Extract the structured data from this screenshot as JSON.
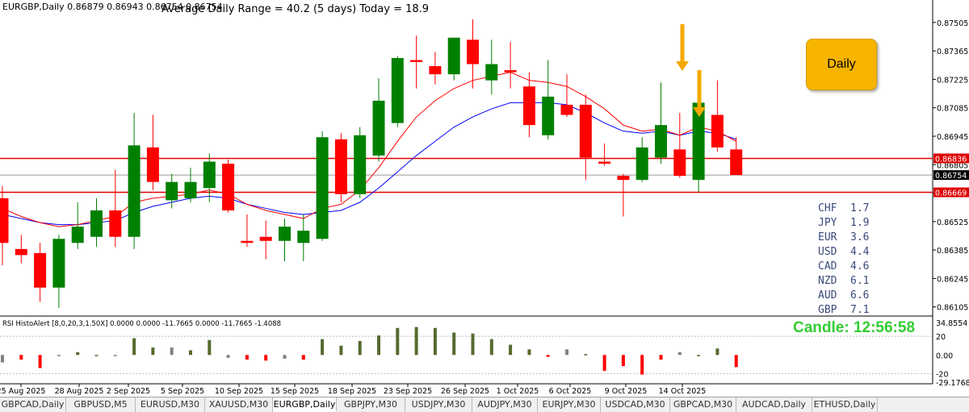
{
  "header": {
    "symbol_info": "EURGBP,Daily  0.86879 0.86943 0.86754 0.86754",
    "adr_label": "Average Daily Range = 40.2 (5 days)    Today = 18.9"
  },
  "daily_button": {
    "label": "Daily"
  },
  "candle_timer": "Candle:  12:56:58",
  "currency_strength": [
    {
      "currency": "CHF",
      "value": "1.7"
    },
    {
      "currency": "JPY",
      "value": "1.9"
    },
    {
      "currency": "EUR",
      "value": "3.6"
    },
    {
      "currency": "USD",
      "value": "4.4"
    },
    {
      "currency": "CAD",
      "value": "4.6"
    },
    {
      "currency": "NZD",
      "value": "6.1"
    },
    {
      "currency": "AUD",
      "value": "6.6"
    },
    {
      "currency": "GBP",
      "value": "7.1"
    }
  ],
  "indicator": {
    "label": "RSI HistoAlert [8,0,20,3,1.50X] 0.0000 0.0000 -11.7665 0.0000 -11.7665 -1.4088",
    "axis_labels": [
      "34.8554",
      "20",
      "0.00",
      "-20",
      "-29.1768"
    ]
  },
  "price_axis": {
    "labels": [
      "0.87505",
      "0.87365",
      "0.87225",
      "0.87085",
      "0.86945",
      "0.86805",
      "0.86665",
      "0.86525",
      "0.86385",
      "0.86245",
      "0.86105"
    ],
    "markers": [
      {
        "value": "0.86836",
        "color": "#e00000"
      },
      {
        "value": "0.86754",
        "color": "#000000"
      },
      {
        "value": "0.86669",
        "color": "#e00000"
      }
    ]
  },
  "date_axis": [
    "25 Aug 2025",
    "28 Aug 2025",
    "2 Sep 2025",
    "5 Sep 2025",
    "10 Sep 2025",
    "15 Sep 2025",
    "18 Sep 2025",
    "23 Sep 2025",
    "26 Sep 2025",
    "1 Oct 2025",
    "6 Oct 2025",
    "9 Oct 2025",
    "14 Oct 2025"
  ],
  "tabs": [
    {
      "label": "GBPCAD,Daily",
      "active": false
    },
    {
      "label": "GBPUSD,M5",
      "active": false
    },
    {
      "label": "EURUSD,M30",
      "active": false
    },
    {
      "label": "XAUUSD,M30",
      "active": false
    },
    {
      "label": "EURGBP,Daily",
      "active": true
    },
    {
      "label": "GBPJPY,M30",
      "active": false
    },
    {
      "label": "USDJPY,M30",
      "active": false
    },
    {
      "label": "AUDJPY,M30",
      "active": false
    },
    {
      "label": "EURJPY,M30",
      "active": false
    },
    {
      "label": "USDCAD,M30",
      "active": false
    },
    {
      "label": "GBPCAD,M30",
      "active": false
    },
    {
      "label": "AUDCAD,Daily",
      "active": false
    },
    {
      "label": "ETHUSD,Daily",
      "active": false
    }
  ],
  "colors": {
    "bull": "#008000",
    "bear": "#ff0000",
    "ma_fast": "#ff0000",
    "ma_slow": "#0000ff",
    "level_line": "#e00000",
    "arrow": "#f5a800",
    "hist_pos": "#556b2f",
    "hist_neg": "#ff0000",
    "hist_neutral": "#808080"
  },
  "chart_data": {
    "type": "candlestick",
    "price_range": [
      0.8606,
      0.8756
    ],
    "levels": [
      0.86836,
      0.86754,
      0.86669
    ],
    "candles": [
      {
        "o": 0.8664,
        "h": 0.867,
        "c": 0.8642,
        "l": 0.8631
      },
      {
        "o": 0.8639,
        "h": 0.8646,
        "c": 0.8636,
        "l": 0.8632
      },
      {
        "o": 0.8637,
        "h": 0.8642,
        "c": 0.862,
        "l": 0.8613
      },
      {
        "o": 0.862,
        "h": 0.8646,
        "c": 0.8644,
        "l": 0.861
      },
      {
        "o": 0.8642,
        "h": 0.8662,
        "c": 0.865,
        "l": 0.8639
      },
      {
        "o": 0.8645,
        "h": 0.8664,
        "c": 0.8658,
        "l": 0.864
      },
      {
        "o": 0.8658,
        "h": 0.8678,
        "c": 0.8645,
        "l": 0.864
      },
      {
        "o": 0.8645,
        "h": 0.8706,
        "c": 0.869,
        "l": 0.8639
      },
      {
        "o": 0.8689,
        "h": 0.8705,
        "c": 0.8672,
        "l": 0.8668
      },
      {
        "o": 0.8663,
        "h": 0.8676,
        "c": 0.8672,
        "l": 0.8659
      },
      {
        "o": 0.8664,
        "h": 0.8679,
        "c": 0.8672,
        "l": 0.8662
      },
      {
        "o": 0.8669,
        "h": 0.8686,
        "c": 0.8682,
        "l": 0.8662
      },
      {
        "o": 0.8681,
        "h": 0.8683,
        "c": 0.8658,
        "l": 0.8657
      },
      {
        "o": 0.8643,
        "h": 0.8656,
        "c": 0.8642,
        "l": 0.864
      },
      {
        "o": 0.8645,
        "h": 0.8653,
        "c": 0.8643,
        "l": 0.8634
      },
      {
        "o": 0.8643,
        "h": 0.8654,
        "c": 0.865,
        "l": 0.8633
      },
      {
        "o": 0.8642,
        "h": 0.8656,
        "c": 0.8648,
        "l": 0.8633
      },
      {
        "o": 0.8644,
        "h": 0.8697,
        "c": 0.8694,
        "l": 0.8643
      },
      {
        "o": 0.8693,
        "h": 0.8696,
        "c": 0.8666,
        "l": 0.8662
      },
      {
        "o": 0.8666,
        "h": 0.8699,
        "c": 0.8695,
        "l": 0.8664
      },
      {
        "o": 0.8685,
        "h": 0.8723,
        "c": 0.8712,
        "l": 0.8682
      },
      {
        "o": 0.8701,
        "h": 0.8734,
        "c": 0.8733,
        "l": 0.8699
      },
      {
        "o": 0.8732,
        "h": 0.8744,
        "c": 0.8731,
        "l": 0.8718
      },
      {
        "o": 0.8729,
        "h": 0.8736,
        "c": 0.8725,
        "l": 0.872
      },
      {
        "o": 0.8725,
        "h": 0.8742,
        "c": 0.8743,
        "l": 0.8722
      },
      {
        "o": 0.8742,
        "h": 0.8752,
        "c": 0.873,
        "l": 0.8718
      },
      {
        "o": 0.8722,
        "h": 0.8742,
        "c": 0.873,
        "l": 0.8715
      },
      {
        "o": 0.8727,
        "h": 0.8741,
        "c": 0.8726,
        "l": 0.8718
      },
      {
        "o": 0.8719,
        "h": 0.8726,
        "c": 0.87,
        "l": 0.8694
      },
      {
        "o": 0.8695,
        "h": 0.8732,
        "c": 0.8714,
        "l": 0.8693
      },
      {
        "o": 0.871,
        "h": 0.8725,
        "c": 0.8705,
        "l": 0.8704
      },
      {
        "o": 0.871,
        "h": 0.8715,
        "c": 0.8684,
        "l": 0.8673
      },
      {
        "o": 0.8682,
        "h": 0.8691,
        "c": 0.8681,
        "l": 0.868
      },
      {
        "o": 0.8675,
        "h": 0.8676,
        "c": 0.8673,
        "l": 0.8655
      },
      {
        "o": 0.8673,
        "h": 0.8694,
        "c": 0.8689,
        "l": 0.8672
      },
      {
        "o": 0.8684,
        "h": 0.8721,
        "c": 0.87,
        "l": 0.8681
      },
      {
        "o": 0.8688,
        "h": 0.8706,
        "c": 0.8675,
        "l": 0.8674
      },
      {
        "o": 0.8673,
        "h": 0.8718,
        "c": 0.8711,
        "l": 0.8667
      },
      {
        "o": 0.8705,
        "h": 0.8722,
        "c": 0.8689,
        "l": 0.8687
      },
      {
        "o": 0.8688,
        "h": 0.8694,
        "c": 0.86754,
        "l": 0.86754
      }
    ],
    "ma_fast": [
      0.8659,
      0.8655,
      0.8652,
      0.865,
      0.8651,
      0.8653,
      0.8655,
      0.8662,
      0.8664,
      0.8665,
      0.8666,
      0.8668,
      0.8666,
      0.8661,
      0.8658,
      0.8656,
      0.8654,
      0.8659,
      0.8661,
      0.8668,
      0.8679,
      0.8692,
      0.8704,
      0.8712,
      0.8718,
      0.8722,
      0.8724,
      0.8726,
      0.8722,
      0.8721,
      0.8719,
      0.8714,
      0.8708,
      0.87,
      0.8697,
      0.8698,
      0.8695,
      0.8699,
      0.8697,
      0.8692
    ],
    "ma_slow": [
      0.8656,
      0.8654,
      0.8652,
      0.8651,
      0.8651,
      0.8652,
      0.8653,
      0.8657,
      0.866,
      0.8662,
      0.8664,
      0.8665,
      0.8664,
      0.8661,
      0.8659,
      0.8657,
      0.8656,
      0.8657,
      0.8658,
      0.8662,
      0.8669,
      0.8677,
      0.8685,
      0.8692,
      0.8699,
      0.8704,
      0.8708,
      0.8711,
      0.8711,
      0.8711,
      0.871,
      0.8706,
      0.8701,
      0.8697,
      0.8696,
      0.8697,
      0.8695,
      0.8697,
      0.8696,
      0.8693
    ],
    "histogram": [
      -8,
      -5,
      -14,
      0,
      3,
      0,
      0,
      18,
      8,
      8,
      5,
      16,
      -3,
      -5,
      -6,
      -4,
      -5,
      17,
      10,
      15,
      21,
      29,
      30,
      29,
      24,
      23,
      17,
      11,
      6,
      -2,
      6,
      1,
      -17,
      -12,
      -21,
      -5,
      3,
      0,
      7,
      -13
    ],
    "hist_range": [
      -29.1768,
      34.8554
    ]
  }
}
